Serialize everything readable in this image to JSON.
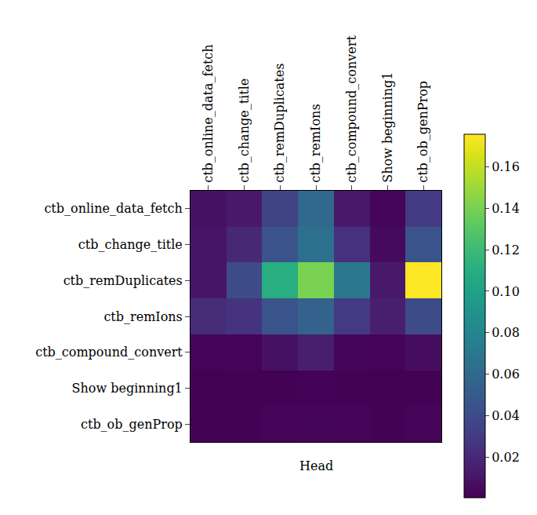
{
  "chart_data": {
    "type": "heatmap",
    "x": [
      "ctb_online_data_fetch",
      "ctb_change_title",
      "ctb_remDuplicates",
      "ctb_remIons",
      "ctb_compound_convert",
      "Show beginning1",
      "ctb_ob_genProp"
    ],
    "y": [
      "ctb_online_data_fetch",
      "ctb_change_title",
      "ctb_remDuplicates",
      "ctb_remIons",
      "ctb_compound_convert",
      "Show beginning1",
      "ctb_ob_genProp"
    ],
    "xlabel": "Head",
    "z": [
      [
        0.008,
        0.012,
        0.035,
        0.06,
        0.012,
        0.003,
        0.03
      ],
      [
        0.01,
        0.02,
        0.045,
        0.065,
        0.025,
        0.005,
        0.045
      ],
      [
        0.01,
        0.04,
        0.11,
        0.14,
        0.07,
        0.012,
        0.1755
      ],
      [
        0.022,
        0.026,
        0.045,
        0.055,
        0.03,
        0.015,
        0.04
      ],
      [
        0.002,
        0.002,
        0.008,
        0.015,
        0.003,
        0.002,
        0.006
      ],
      [
        0.0005,
        0.0008,
        0.001,
        0.0015,
        0.001,
        0.0005,
        0.001
      ],
      [
        0.001,
        0.001,
        0.002,
        0.003,
        0.002,
        0.0008,
        0.002
      ]
    ],
    "color": "viridis",
    "zlim": [
      0.0005,
      0.1755
    ],
    "zticks": [
      0.02,
      0.04,
      0.06,
      0.08,
      {
        "value": 0.1,
        "label": "0.10"
      },
      0.12,
      0.14,
      0.16
    ]
  }
}
